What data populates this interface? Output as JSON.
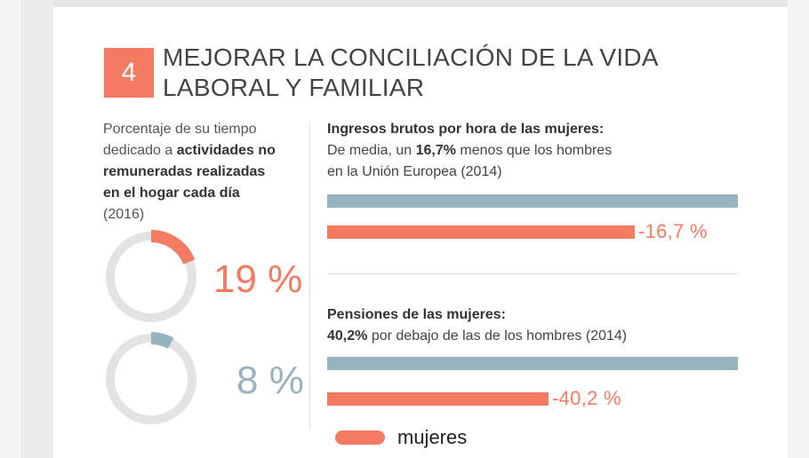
{
  "colors": {
    "women": "#f47b62",
    "men": "#98b3c0",
    "track": "#e3e3e3"
  },
  "section": {
    "number": "4",
    "title_line1": "MEJORAR LA CONCILIACIÓN DE LA VIDA",
    "title_line2": "LABORAL Y FAMILIAR"
  },
  "left_panel": {
    "text1": "Porcentaje de su tiempo",
    "text2": "dedicado a ",
    "text2_bold": "actividades no",
    "text3_bold": "remuneradas realizadas",
    "text4_bold": "en el hogar cada día",
    "text5": "(2016)"
  },
  "hourly": {
    "heading": "Ingresos brutos por hora de las mujeres:",
    "line2_a": "De media, un ",
    "line2_bold": "16,7%",
    "line2_b": " menos que los hombres",
    "line3": "en la Unión Europea (2014)"
  },
  "pensions": {
    "heading": "Pensiones de las mujeres:",
    "line2_bold": "40,2%",
    "line2_b": " por debajo de las de los hombres (2014)"
  },
  "legend": {
    "label": "mujeres"
  },
  "chart_data": [
    {
      "type": "pie",
      "title": "",
      "series": [
        {
          "label": "19 %",
          "value": 19,
          "color": "#f47b62"
        },
        {
          "label": "8 %",
          "value": 8,
          "color": "#98b3c0"
        }
      ]
    },
    {
      "type": "bar",
      "title": "",
      "series": [
        {
          "group": "hourly",
          "color": "#98b3c0",
          "value": 0
        },
        {
          "group": "hourly",
          "name": "mujeres",
          "color": "#f47b62",
          "value": -16.7,
          "label": "-16,7 %"
        },
        {
          "group": "pensions",
          "color": "#98b3c0",
          "value": 0
        },
        {
          "group": "pensions",
          "name": "mujeres",
          "color": "#f47b62",
          "value": -40.2,
          "label": "-40,2 %"
        }
      ]
    }
  ]
}
